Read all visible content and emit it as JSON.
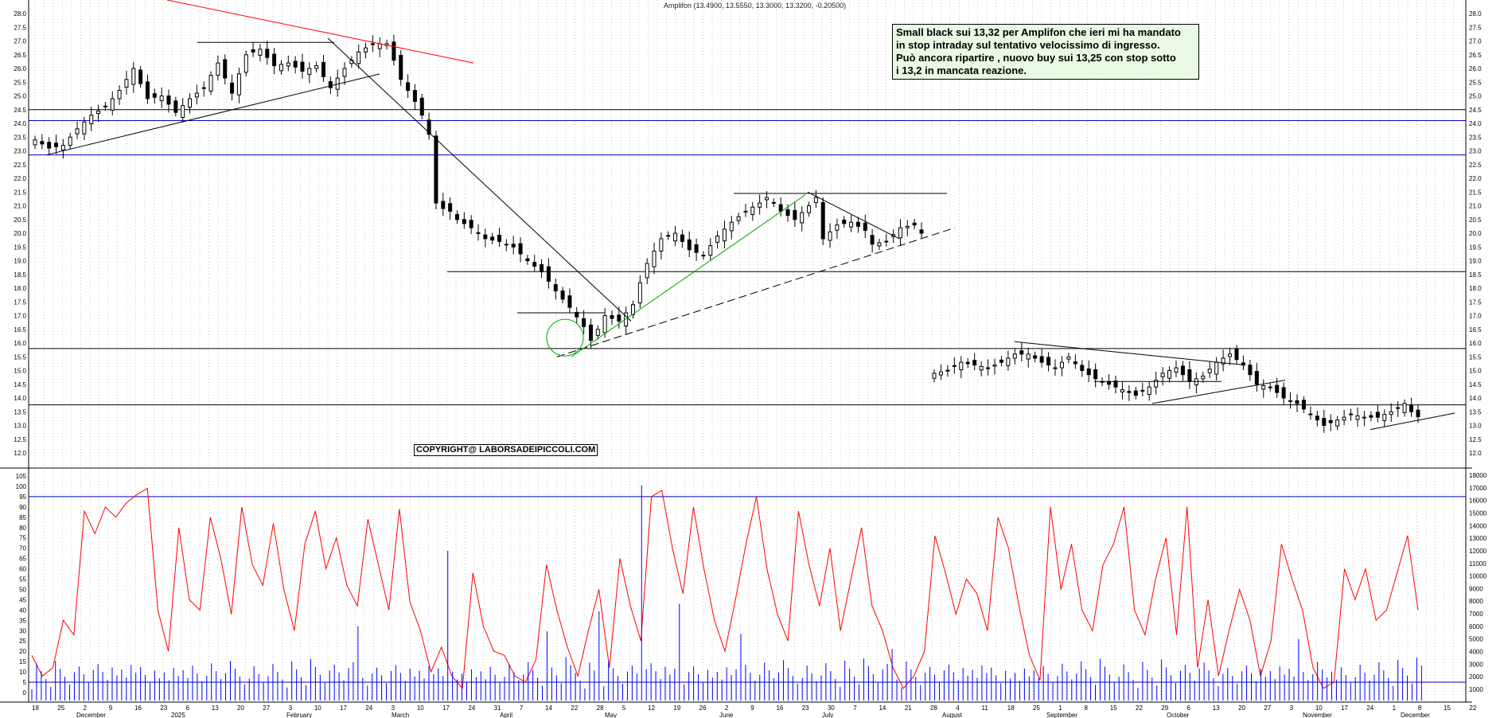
{
  "title": "Amplifon (13.4900, 13.5550, 13.3000, 13.3200, -0.20500)",
  "note_lines": [
    "Small black sui 13,32 per Amplifon che ieri mi ha mandato",
    "in stop intraday sul tentativo velocissimo di ingresso.",
    "Può ancora ripartire , nuovo buy sui 13,25 con stop sotto",
    "i 13,2 in mancata reazione."
  ],
  "copyright": "COPYRIGHT@ LABORSADEIPICCOLI.COM",
  "colors": {
    "candle": "#000000",
    "resistance": "#ff0000",
    "blue_level": "#0000cc",
    "green_trend": "#00aa00",
    "oscillator": "#ff0000",
    "volume": "#0000ff",
    "note_bg": "#e9f9e4"
  },
  "chart_data": [
    {
      "type": "candlestick",
      "title": "Amplifon (13.4900, 13.5550, 13.3000, 13.3200, -0.20500)",
      "ylim": [
        11.5,
        28.5
      ],
      "y_ticks": [
        "12.0",
        "12.5",
        "13.0",
        "13.5",
        "14.0",
        "14.5",
        "15.0",
        "15.5",
        "16.0",
        "16.5",
        "17.0",
        "17.5",
        "18.0",
        "18.5",
        "19.0",
        "19.5",
        "20.0",
        "20.5",
        "21.0",
        "21.5",
        "22.0",
        "22.5",
        "23.0",
        "23.5",
        "24.0",
        "24.5",
        "25.0",
        "25.5",
        "26.0",
        "26.5",
        "27.0",
        "27.5",
        "28.0"
      ],
      "x_ticks": [
        "18",
        "25",
        "2",
        "9",
        "16",
        "23",
        "6",
        "13",
        "20",
        "27",
        "3",
        "10",
        "17",
        "24",
        "3",
        "10",
        "17",
        "24",
        "31",
        "7",
        "14",
        "22",
        "28",
        "5",
        "12",
        "19",
        "26",
        "2",
        "9",
        "16",
        "23",
        "30",
        "7",
        "14",
        "21",
        "28",
        "4",
        "11",
        "18",
        "25",
        "1",
        "8",
        "15",
        "22",
        "29",
        "6",
        "13",
        "20",
        "27",
        "3",
        "10",
        "17",
        "24",
        "1",
        "8",
        "15",
        "22"
      ],
      "month_labels": [
        "December",
        "2025",
        "February",
        "March",
        "April",
        "May",
        "June",
        "July",
        "August",
        "September",
        "October",
        "November",
        "December"
      ],
      "horizontal_levels": [
        {
          "value": 24.5,
          "color": "#000000"
        },
        {
          "value": 24.1,
          "color": "#0000cc"
        },
        {
          "value": 22.85,
          "color": "#0000cc"
        },
        {
          "value": 18.6,
          "color": "#000000"
        },
        {
          "value": 15.8,
          "color": "#000000"
        },
        {
          "value": 13.75,
          "color": "#000000"
        }
      ],
      "close_path": [
        [
          0,
          23.4
        ],
        [
          4,
          23.1
        ],
        [
          8,
          23.2
        ],
        [
          12,
          23.8
        ],
        [
          16,
          24.3
        ],
        [
          20,
          24.6
        ],
        [
          24,
          25.2
        ],
        [
          28,
          26.0
        ],
        [
          32,
          24.9
        ],
        [
          36,
          25.0
        ],
        [
          40,
          24.4
        ],
        [
          44,
          24.9
        ],
        [
          48,
          25.3
        ],
        [
          52,
          26.2
        ],
        [
          56,
          25.1
        ],
        [
          60,
          26.5
        ],
        [
          64,
          26.7
        ],
        [
          68,
          26.1
        ],
        [
          72,
          26.2
        ],
        [
          76,
          25.9
        ],
        [
          80,
          26.1
        ],
        [
          84,
          25.3
        ],
        [
          88,
          26.0
        ],
        [
          92,
          26.6
        ],
        [
          96,
          26.9
        ],
        [
          100,
          26.9
        ],
        [
          102,
          26.3
        ],
        [
          104,
          25.6
        ],
        [
          106,
          25.2
        ],
        [
          108,
          24.8
        ],
        [
          110,
          24.3
        ],
        [
          112,
          23.6
        ],
        [
          114,
          21.1
        ],
        [
          116,
          20.9
        ],
        [
          118,
          20.8
        ],
        [
          120,
          20.5
        ],
        [
          124,
          20.2
        ],
        [
          128,
          19.8
        ],
        [
          132,
          19.7
        ],
        [
          136,
          19.5
        ],
        [
          140,
          19.0
        ],
        [
          144,
          18.6
        ],
        [
          148,
          17.9
        ],
        [
          152,
          17.3
        ],
        [
          156,
          16.6
        ],
        [
          158,
          16.1
        ],
        [
          160,
          16.5
        ],
        [
          162,
          17.0
        ],
        [
          166,
          16.8
        ],
        [
          170,
          17.4
        ],
        [
          172,
          18.2
        ],
        [
          174,
          18.9
        ],
        [
          178,
          19.8
        ],
        [
          182,
          20.0
        ],
        [
          186,
          19.4
        ],
        [
          190,
          19.2
        ],
        [
          194,
          19.9
        ],
        [
          198,
          20.4
        ],
        [
          202,
          20.8
        ],
        [
          206,
          21.1
        ],
        [
          208,
          21.3
        ],
        [
          210,
          21.1
        ],
        [
          212,
          20.8
        ],
        [
          216,
          20.5
        ],
        [
          220,
          21.0
        ],
        [
          222,
          21.3
        ],
        [
          224,
          19.8
        ],
        [
          228,
          20.3
        ],
        [
          232,
          20.4
        ],
        [
          236,
          20.1
        ],
        [
          238,
          19.6
        ],
        [
          242,
          19.7
        ],
        [
          246,
          20.2
        ],
        [
          250,
          20.3
        ],
        [
          252,
          20.0
        ]
      ],
      "gap_segment_start_index": 253,
      "close_path_2": [
        [
          0,
          14.9
        ],
        [
          4,
          15.0
        ],
        [
          8,
          15.3
        ],
        [
          12,
          15.2
        ],
        [
          16,
          15.1
        ],
        [
          20,
          15.3
        ],
        [
          24,
          15.6
        ],
        [
          28,
          15.6
        ],
        [
          32,
          15.3
        ],
        [
          36,
          15.1
        ],
        [
          40,
          15.5
        ],
        [
          44,
          15.0
        ],
        [
          48,
          14.7
        ],
        [
          52,
          14.5
        ],
        [
          56,
          14.3
        ],
        [
          60,
          14.1
        ],
        [
          64,
          14.4
        ],
        [
          68,
          14.9
        ],
        [
          72,
          15.1
        ],
        [
          76,
          14.6
        ],
        [
          80,
          14.8
        ],
        [
          84,
          15.3
        ],
        [
          88,
          15.6
        ],
        [
          92,
          15.2
        ],
        [
          96,
          14.5
        ],
        [
          100,
          14.4
        ],
        [
          104,
          14.0
        ],
        [
          108,
          13.8
        ],
        [
          112,
          13.4
        ],
        [
          116,
          13.0
        ],
        [
          120,
          13.2
        ],
        [
          124,
          13.4
        ],
        [
          128,
          13.3
        ],
        [
          132,
          13.3
        ],
        [
          136,
          13.5
        ],
        [
          140,
          13.8
        ],
        [
          142,
          13.5
        ],
        [
          144,
          13.32
        ]
      ],
      "oscillator": {
        "ylim": [
          0,
          105
        ],
        "y_ticks": [
          "0",
          "5",
          "10",
          "15",
          "20",
          "25",
          "30",
          "35",
          "40",
          "45",
          "50",
          "55",
          "60",
          "65",
          "70",
          "75",
          "80",
          "85",
          "90",
          "95",
          "100",
          "105"
        ],
        "levels": [
          95,
          5
        ],
        "values": [
          18,
          8,
          12,
          35,
          28,
          88,
          77,
          90,
          85,
          92,
          96,
          99,
          40,
          20,
          80,
          45,
          40,
          85,
          65,
          38,
          90,
          62,
          52,
          82,
          50,
          30,
          72,
          88,
          60,
          75,
          52,
          42,
          84,
          62,
          40,
          89,
          44,
          30,
          10,
          22,
          8,
          2,
          58,
          32,
          20,
          18,
          8,
          5,
          16,
          62,
          40,
          22,
          8,
          30,
          50,
          12,
          65,
          42,
          25,
          95,
          98,
          70,
          48,
          90,
          60,
          35,
          20,
          45,
          72,
          95,
          60,
          38,
          25,
          88,
          62,
          42,
          70,
          30,
          55,
          80,
          42,
          30,
          12,
          2,
          8,
          20,
          76,
          58,
          38,
          55,
          48,
          30,
          85,
          70,
          42,
          18,
          6,
          90,
          50,
          72,
          40,
          30,
          62,
          72,
          90,
          40,
          28,
          55,
          75,
          28,
          90,
          12,
          45,
          8,
          30,
          50,
          35,
          8,
          25,
          72,
          55,
          40,
          12,
          2,
          5,
          60,
          45,
          60,
          35,
          40,
          58,
          76,
          40
        ]
      },
      "volume": {
        "ylim": [
          0,
          18000
        ],
        "y_ticks": [
          "1000",
          "2000",
          "3000",
          "4000",
          "5000",
          "6000",
          "7000",
          "8000",
          "9000",
          "10000",
          "11000",
          "12000",
          "13000",
          "14000",
          "15000",
          "16000",
          "17000",
          "18000"
        ]
      }
    }
  ]
}
